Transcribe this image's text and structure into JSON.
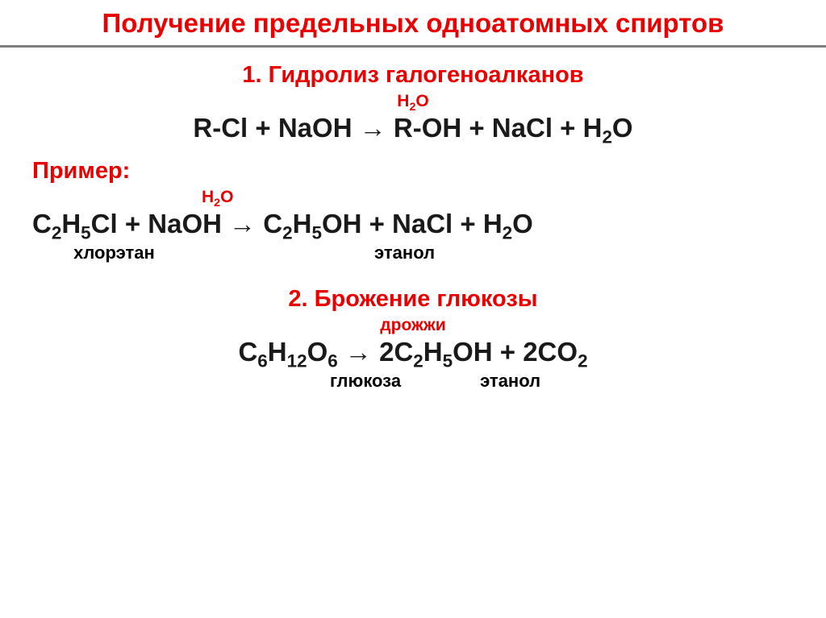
{
  "colors": {
    "red": "#e90000",
    "black": "#1a1a1a",
    "underline": "#7f7f7f",
    "bg": "#ffffff"
  },
  "title": "Получение предельных одноатомных спиртов",
  "section1": {
    "heading": "1. Гидролиз галогеноалканов",
    "condition": "H₂O",
    "equation": "R-Cl  + NaOH → R-OH + NaCl + H₂O"
  },
  "example": {
    "label": "Пример:",
    "condition": "H₂O",
    "equation": "C₂H₅Cl + NaOH  → C₂H₅OH + NaCl + H₂O",
    "left_label": "хлорэтан",
    "right_label": "этанол"
  },
  "section2": {
    "heading": "2. Брожение глюкозы",
    "condition": "дрожжи",
    "equation": "C₆H₁₂O₆  →  2C₂H₅OH  + 2CO₂",
    "left_label": "глюкоза",
    "right_label": "этанол"
  }
}
